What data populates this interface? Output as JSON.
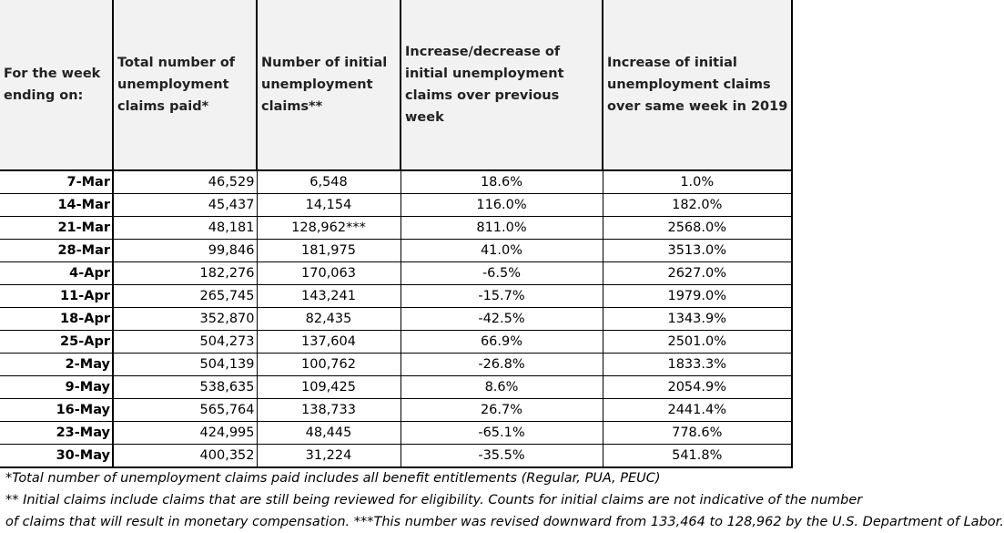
{
  "table": {
    "headers": [
      "For the week ending on:",
      "Total number of unemployment claims paid*",
      "Number of initial unemployment claims**",
      "Increase/decrease of initial unemployment claims over previous week",
      "Increase of initial unemployment claims over same week in 2019"
    ],
    "rows": [
      [
        "7-Mar",
        "46,529",
        "6,548",
        "18.6%",
        "1.0%"
      ],
      [
        "14-Mar",
        "45,437",
        "14,154",
        "116.0%",
        "182.0%"
      ],
      [
        "21-Mar",
        "48,181",
        "128,962***",
        "811.0%",
        "2568.0%"
      ],
      [
        "28-Mar",
        "99,846",
        "181,975",
        "41.0%",
        "3513.0%"
      ],
      [
        "4-Apr",
        "182,276",
        "170,063",
        "-6.5%",
        "2627.0%"
      ],
      [
        "11-Apr",
        "265,745",
        "143,241",
        "-15.7%",
        "1979.0%"
      ],
      [
        "18-Apr",
        "352,870",
        "82,435",
        "-42.5%",
        "1343.9%"
      ],
      [
        "25-Apr",
        "504,273",
        "137,604",
        "66.9%",
        "2501.0%"
      ],
      [
        "2-May",
        "504,139",
        "100,762",
        "-26.8%",
        "1833.3%"
      ],
      [
        "9-May",
        "538,635",
        "109,425",
        "8.6%",
        "2054.9%"
      ],
      [
        "16-May",
        "565,764",
        "138,733",
        "26.7%",
        "2441.4%"
      ],
      [
        "23-May",
        "424,995",
        "48,445",
        "-65.1%",
        "778.6%"
      ],
      [
        "30-May",
        "400,352",
        "31,224",
        "-35.5%",
        "541.8%"
      ]
    ]
  },
  "footnotes": [
    "*Total number of unemployment claims paid includes all benefit entitlements (Regular, PUA, PEUC)",
    "** Initial claims include claims that are still being reviewed for eligibility. Counts for initial claims are not indicative of the number",
    " of claims that will result in monetary compensation. ***This number was revised downward from 133,464 to 128,962 by the U.S. Department of Labor."
  ]
}
